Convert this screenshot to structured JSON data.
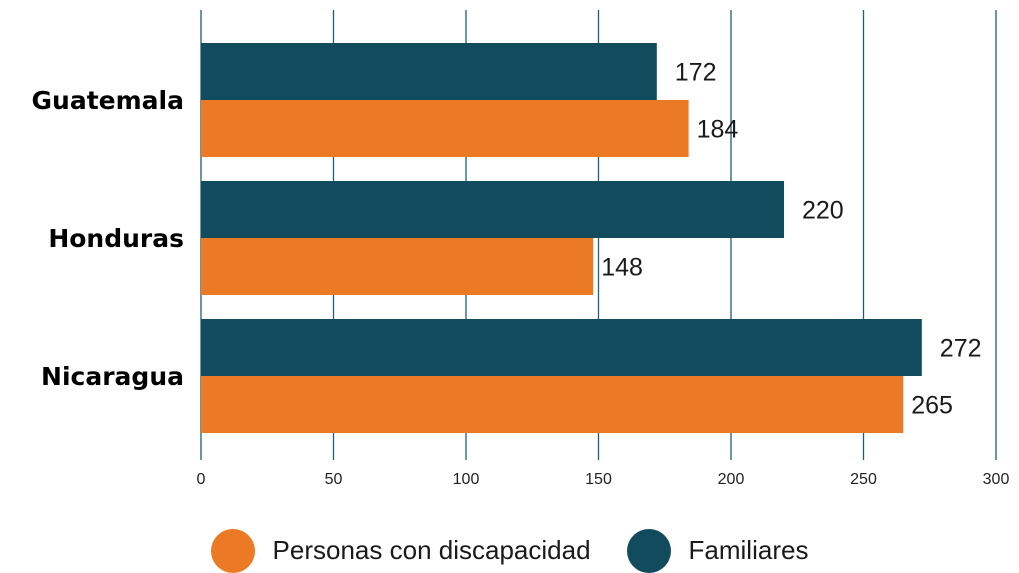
{
  "chart_data": {
    "type": "bar",
    "orientation": "horizontal",
    "categories": [
      "Guatemala",
      "Honduras",
      "Nicaragua"
    ],
    "series": [
      {
        "name": "Familiares",
        "values": [
          172,
          220,
          272
        ],
        "color": "#124a5e"
      },
      {
        "name": "Personas con discapacidad",
        "values": [
          184,
          148,
          265
        ],
        "color": "#ec7a24"
      }
    ],
    "xticks": [
      0,
      50,
      100,
      150,
      200,
      250,
      300
    ],
    "xlim": [
      0,
      300
    ],
    "grid": "vertical",
    "legend_position": "bottom-center",
    "title": "",
    "xlabel": "",
    "ylabel": ""
  },
  "legend": [
    {
      "label": "Personas con discapacidad",
      "color": "#ec7a24"
    },
    {
      "label": "Familiares",
      "color": "#124a5e"
    }
  ]
}
